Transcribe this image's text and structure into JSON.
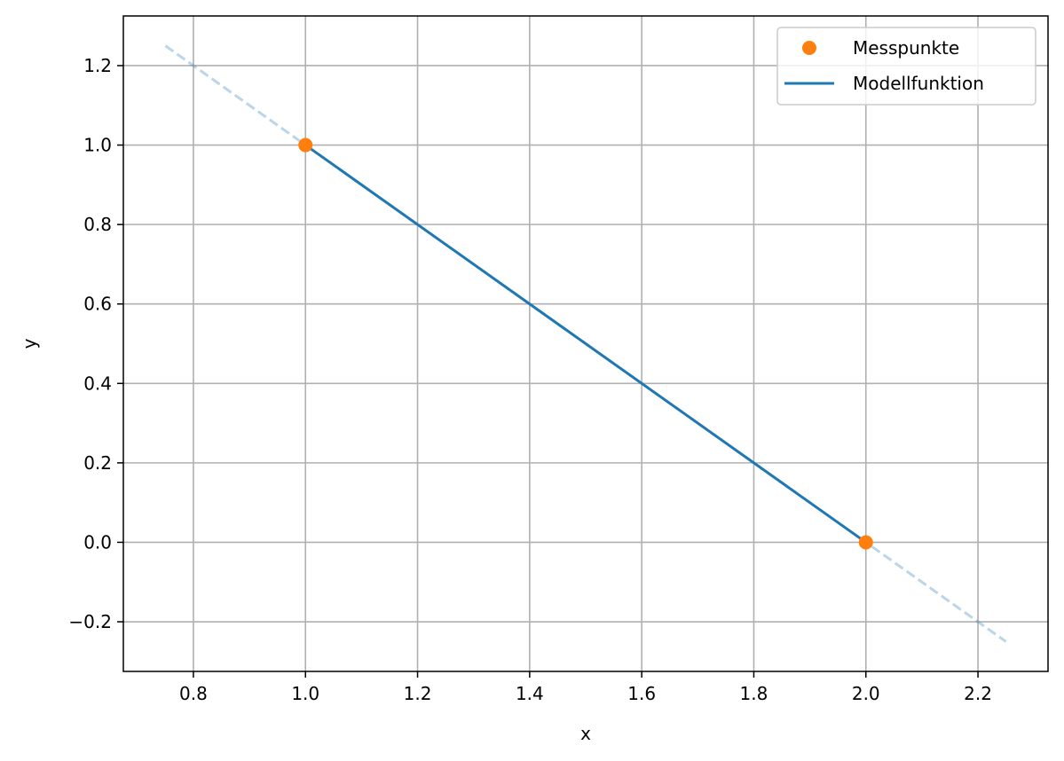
{
  "chart_data": {
    "type": "line",
    "title": "",
    "xlabel": "x",
    "ylabel": "y",
    "xlim": [
      0.675,
      2.325
    ],
    "ylim": [
      -0.325,
      1.325
    ],
    "xticks": [
      0.8,
      1.0,
      1.2,
      1.4,
      1.6,
      1.8,
      2.0,
      2.2
    ],
    "xtick_labels": [
      "0.8",
      "1.0",
      "1.2",
      "1.4",
      "1.6",
      "1.8",
      "2.0",
      "2.2"
    ],
    "yticks": [
      -0.2,
      0.0,
      0.2,
      0.4,
      0.6,
      0.8,
      1.0,
      1.2
    ],
    "ytick_labels": [
      "−0.2",
      "0.0",
      "0.2",
      "0.4",
      "0.6",
      "0.8",
      "1.0",
      "1.2"
    ],
    "grid": true,
    "legend_position": "top-right",
    "series": [
      {
        "name": "Messpunkte",
        "kind": "scatter",
        "color": "#ff7f0e",
        "x": [
          1.0,
          2.0
        ],
        "y": [
          1.0,
          0.0
        ]
      },
      {
        "name": "Modellfunktion",
        "kind": "line",
        "color": "#1f77b4",
        "x": [
          1.0,
          2.0
        ],
        "y": [
          1.0,
          0.0
        ]
      },
      {
        "kind": "dashed-extension",
        "color": "#1f77b4",
        "opacity": 0.3,
        "x": [
          0.75,
          2.25
        ],
        "y": [
          1.25,
          -0.25
        ]
      }
    ]
  }
}
